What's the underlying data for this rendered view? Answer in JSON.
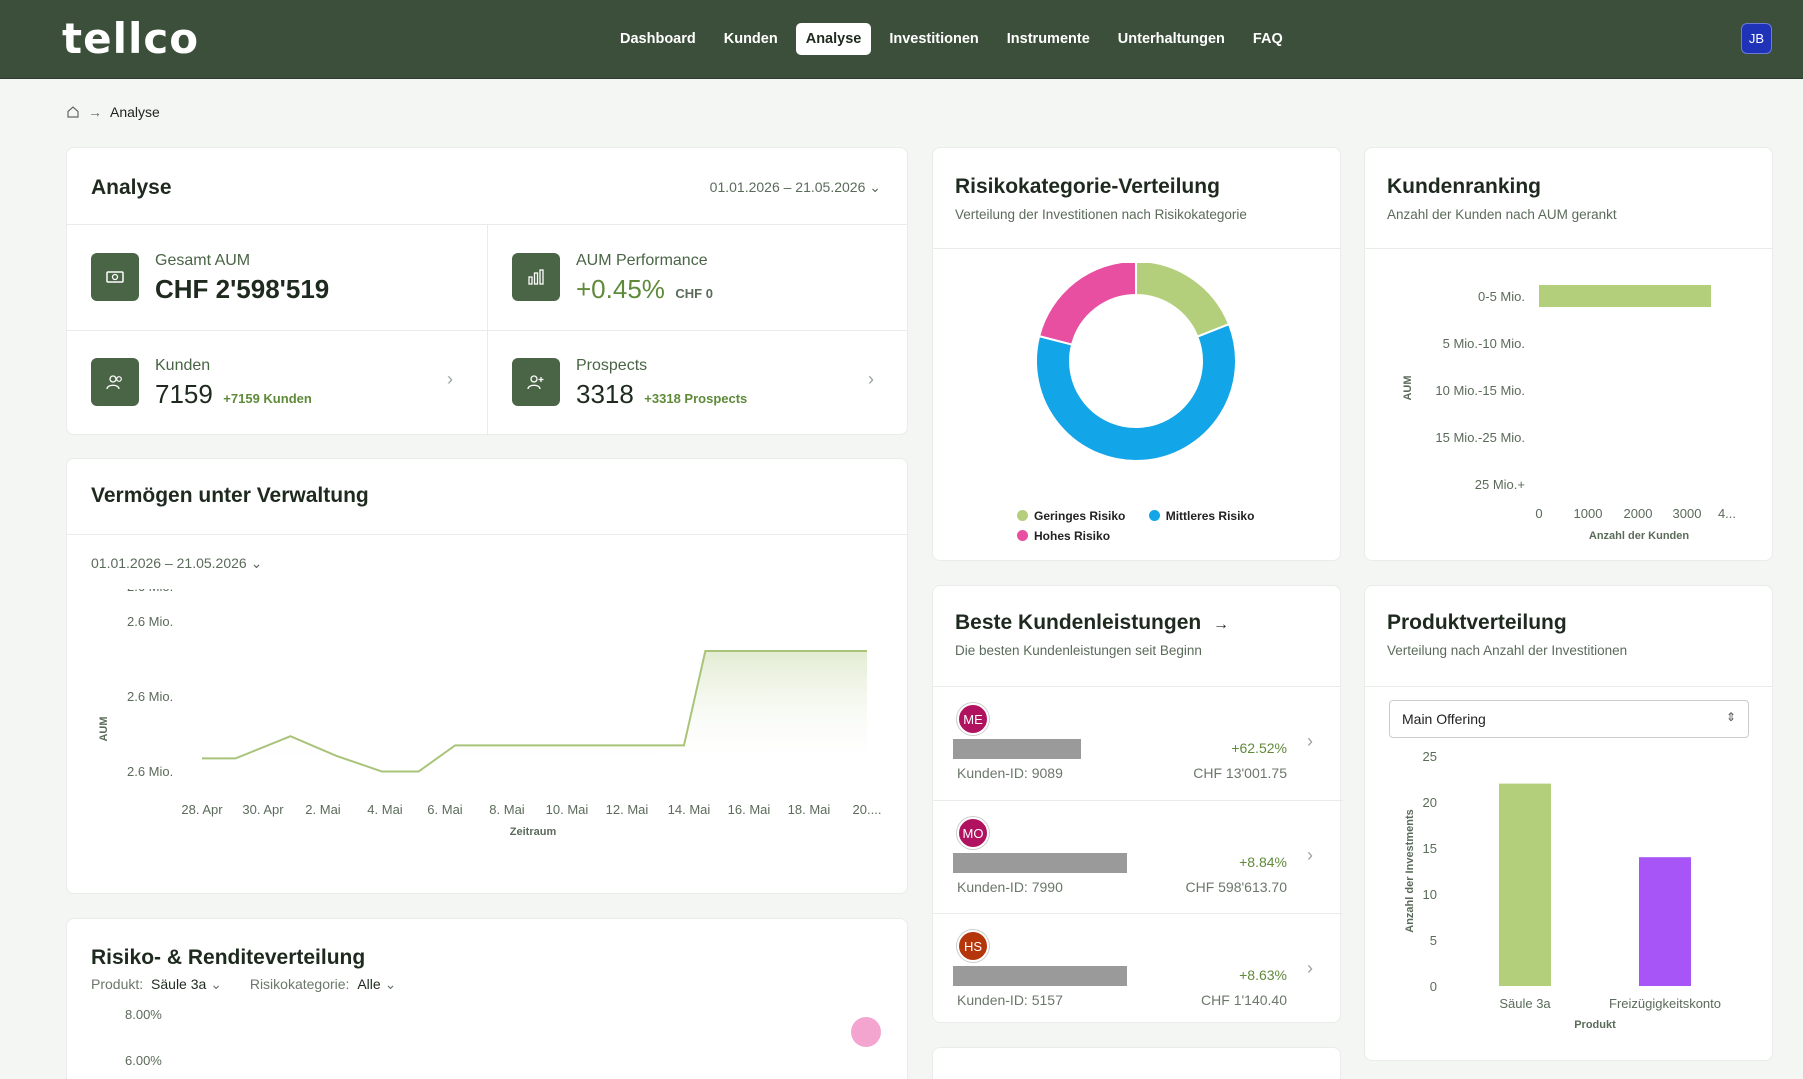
{
  "app": {
    "logo": "tellco",
    "user_initials": "JB"
  },
  "nav": [
    {
      "label": "Dashboard",
      "active": false
    },
    {
      "label": "Kunden",
      "active": false
    },
    {
      "label": "Analyse",
      "active": true
    },
    {
      "label": "Investitionen",
      "active": false
    },
    {
      "label": "Instrumente",
      "active": false
    },
    {
      "label": "Unterhaltungen",
      "active": false
    },
    {
      "label": "FAQ",
      "active": false
    }
  ],
  "breadcrumb": {
    "current": "Analyse"
  },
  "analyse": {
    "title": "Analyse",
    "date_range": "01.01.2026 – 21.05.2026",
    "gesamt_aum": {
      "label": "Gesamt AUM",
      "value": "CHF 2'598'519"
    },
    "aum_perf": {
      "label": "AUM Performance",
      "value": "+0.45%",
      "delta": "CHF 0"
    },
    "kunden": {
      "label": "Kunden",
      "value": "7159",
      "delta": "+7159 Kunden"
    },
    "prospects": {
      "label": "Prospects",
      "value": "3318",
      "delta": "+3318 Prospects"
    }
  },
  "vermoegen": {
    "title": "Vermögen unter Verwaltung",
    "date_range": "01.01.2026 – 21.05.2026"
  },
  "risiko_rendite": {
    "title": "Risiko- & Renditeverteilung",
    "produkt_label": "Produkt:",
    "produkt_value": "Säule 3a",
    "kategorie_label": "Risikokategorie:",
    "kategorie_value": "Alle",
    "y_ticks": [
      "8.00%",
      "6.00%"
    ]
  },
  "risikokategorie": {
    "title": "Risikokategorie-Verteilung",
    "subtitle": "Verteilung der Investitionen nach Risikokategorie",
    "legend": [
      "Geringes Risiko",
      "Mittleres Risiko",
      "Hohes Risiko"
    ]
  },
  "kundenranking": {
    "title": "Kundenranking",
    "subtitle": "Anzahl der Kunden nach AUM gerankt"
  },
  "beste": {
    "title": "Beste Kundenleistungen",
    "subtitle": "Die besten Kundenleistungen seit Beginn",
    "rows": [
      {
        "initials": "ME",
        "color": "#b0125f",
        "id": "Kunden-ID: 9089",
        "pct": "+62.52%",
        "amount": "CHF 13'001.75",
        "bar": 0.45
      },
      {
        "initials": "MO",
        "color": "#b0125f",
        "id": "Kunden-ID: 7990",
        "pct": "+8.84%",
        "amount": "CHF 598'613.70",
        "bar": 0.61
      },
      {
        "initials": "HS",
        "color": "#b5360b",
        "id": "Kunden-ID: 5157",
        "pct": "+8.63%",
        "amount": "CHF 1'140.40",
        "bar": 0.61
      }
    ]
  },
  "produktverteilung": {
    "title": "Produktverteilung",
    "subtitle": "Verteilung nach Anzahl der Investitionen",
    "select_value": "Main Offering"
  },
  "chart_data": [
    {
      "type": "area",
      "title": "Vermögen unter Verwaltung",
      "xlabel": "Zeitraum",
      "ylabel": "AUM",
      "x_ticks": [
        "28. Apr",
        "30. Apr",
        "2. Mai",
        "4. Mai",
        "6. Mai",
        "8. Mai",
        "10. Mai",
        "12. Mai",
        "14. Mai",
        "16. Mai",
        "18. Mai",
        "20...."
      ],
      "y_ticks": [
        "2.6 Mio.",
        "2.6 Mio.",
        "2.6 Mio.",
        "2.6 Mio."
      ],
      "x": [
        0,
        1.1,
        2.9,
        4.4,
        5.9,
        7.1,
        8.3,
        9.5,
        10.8,
        12.0,
        13.2,
        14.4,
        15.8,
        16.5,
        18.0,
        20.0,
        21.8
      ],
      "values": [
        0.18,
        0.18,
        0.35,
        0.2,
        0.08,
        0.08,
        0.28,
        0.28,
        0.28,
        0.28,
        0.28,
        0.28,
        0.28,
        1.0,
        1.0,
        1.0,
        1.0
      ],
      "color": "#a9c47a"
    },
    {
      "type": "pie",
      "title": "Risikokategorie-Verteilung",
      "labels": [
        "Geringes Risiko",
        "Mittleres Risiko",
        "Hohes Risiko"
      ],
      "values": [
        19,
        60,
        21
      ],
      "colors": [
        "#b4cf7c",
        "#12a5e8",
        "#e84fa0"
      ]
    },
    {
      "type": "bar",
      "orientation": "horizontal",
      "title": "Kundenranking",
      "categories": [
        "0-5 Mio.",
        "5 Mio.-10 Mio.",
        "10 Mio.-15 Mio.",
        "15 Mio.-25 Mio.",
        "25 Mio.+"
      ],
      "values": [
        3700,
        0,
        0,
        0,
        0
      ],
      "x_ticks": [
        "0",
        "1000",
        "2000",
        "3000",
        "4..."
      ],
      "xlabel": "Anzahl der Kunden",
      "ylabel": "AUM",
      "xlim": [
        0,
        4000
      ],
      "color": "#b4cf7c"
    },
    {
      "type": "bar",
      "title": "Produktverteilung",
      "categories": [
        "Säule 3a",
        "Freizügigkeitskonto"
      ],
      "values": [
        22,
        14
      ],
      "colors": [
        "#b4cf7c",
        "#a855f7"
      ],
      "y_ticks": [
        "25",
        "20",
        "15",
        "10",
        "5",
        "0"
      ],
      "ylim": [
        0,
        25
      ],
      "xlabel": "Produkt",
      "ylabel": "Anzahl der Investments"
    }
  ]
}
